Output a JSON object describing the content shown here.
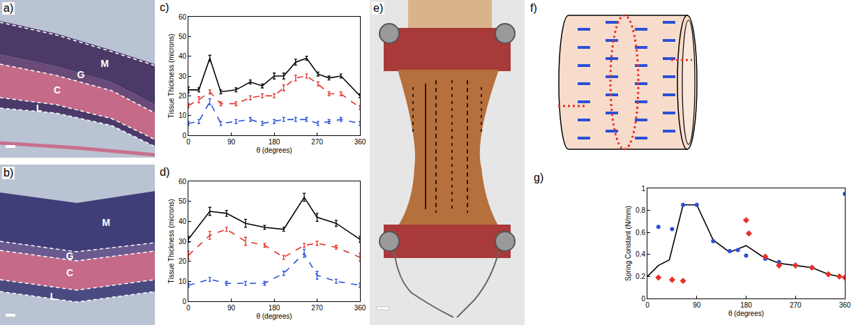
{
  "panels": {
    "a": {
      "label": "a)",
      "layers": [
        "M",
        "G",
        "C",
        "L"
      ]
    },
    "b": {
      "label": "b)",
      "layers": [
        "M",
        "G",
        "C",
        "L"
      ]
    },
    "e": {
      "label": "e)"
    },
    "f": {
      "label": "f)"
    }
  },
  "chart_data": [
    {
      "label": "c)",
      "type": "line",
      "x_label": "θ (degrees)",
      "y_label": "Tissue Thickness (microns)",
      "x": [
        0,
        22,
        45,
        68,
        100,
        130,
        155,
        180,
        200,
        225,
        248,
        272,
        295,
        320,
        360
      ],
      "xlim": [
        0,
        360
      ],
      "xticks": [
        0,
        90,
        180,
        270,
        360
      ],
      "ylim": [
        0,
        60
      ],
      "yticks": [
        0,
        10,
        20,
        30,
        40,
        50,
        60
      ],
      "grid": false,
      "series": [
        {
          "color": "#000000",
          "line_style": "solid",
          "values": [
            23,
            23,
            39,
            22,
            23,
            27,
            25,
            30,
            30,
            37,
            39,
            31,
            29,
            30,
            20
          ],
          "error": [
            1.5,
            1,
            1.5,
            1,
            1,
            1,
            1,
            1.5,
            1.5,
            1.5,
            1,
            1,
            1,
            1,
            1
          ]
        },
        {
          "color": "#e8302a",
          "line_style": "dashed",
          "values": [
            15,
            18,
            22,
            16,
            16,
            19,
            20,
            20,
            24,
            29,
            30,
            26,
            21,
            21,
            14
          ],
          "error": [
            1,
            1.5,
            1,
            1,
            1,
            1,
            1,
            1,
            1.5,
            1.5,
            1,
            1,
            1,
            1,
            1
          ]
        },
        {
          "color": "#2b4fd6",
          "line_style": "dashed",
          "values": [
            6,
            7,
            17,
            6,
            7,
            8,
            6,
            7,
            8,
            8,
            8,
            6,
            7,
            8,
            6
          ],
          "error": [
            1,
            1,
            1.5,
            1,
            1,
            1,
            1,
            1,
            1,
            1,
            1,
            1,
            1,
            1,
            1
          ]
        }
      ]
    },
    {
      "label": "d)",
      "type": "line",
      "x_label": "θ (degrees)",
      "y_label": "Tissue Thickness (microns)",
      "x": [
        0,
        45,
        80,
        120,
        160,
        200,
        243,
        270,
        310,
        360
      ],
      "xlim": [
        0,
        360
      ],
      "xticks": [
        0,
        90,
        180,
        270,
        360
      ],
      "ylim": [
        0,
        60
      ],
      "yticks": [
        0,
        10,
        20,
        30,
        40,
        50,
        60
      ],
      "grid": false,
      "series": [
        {
          "color": "#000000",
          "line_style": "solid",
          "values": [
            31,
            45,
            44,
            39,
            37,
            36,
            52,
            42,
            39,
            31
          ],
          "error": [
            1.5,
            2,
            1.5,
            2,
            1,
            1,
            2,
            2,
            1.5,
            1.5
          ]
        },
        {
          "color": "#e8302a",
          "line_style": "dashed",
          "values": [
            23,
            33,
            36,
            30,
            28,
            22,
            28,
            29,
            27,
            22
          ],
          "error": [
            2,
            2,
            1,
            2,
            1,
            1,
            1,
            1,
            1,
            2
          ]
        },
        {
          "color": "#2b4fd6",
          "line_style": "dashed",
          "values": [
            8,
            11,
            9,
            9,
            9,
            14,
            24,
            13,
            10,
            8
          ],
          "error": [
            1,
            1,
            1,
            1,
            1,
            1,
            2,
            2,
            1,
            1
          ]
        }
      ]
    },
    {
      "label": "g)",
      "type": "scatter",
      "x_label": "θ (degrees)",
      "y_label": "Spring Constant (N/mm)",
      "xlim": [
        0,
        360
      ],
      "xticks": [
        0,
        90,
        180,
        270,
        360
      ],
      "ylim": [
        0,
        1
      ],
      "yticks": [
        0,
        0.2,
        0.4,
        0.6,
        0.8,
        1
      ],
      "grid": false,
      "series": [
        {
          "type": "line",
          "color": "#000000",
          "line_style": "solid",
          "x": [
            0,
            20,
            40,
            65,
            90,
            120,
            150,
            180,
            210,
            240,
            270,
            300,
            330,
            360
          ],
          "values": [
            0.2,
            0.3,
            0.35,
            0.85,
            0.85,
            0.53,
            0.42,
            0.48,
            0.38,
            0.32,
            0.3,
            0.28,
            0.22,
            0.19
          ]
        },
        {
          "type": "scatter",
          "color": "#2b4fd6",
          "marker": "circle",
          "x": [
            20,
            45,
            65,
            90,
            120,
            150,
            165,
            180,
            215,
            240,
            360
          ],
          "values": [
            0.65,
            0.63,
            0.85,
            0.85,
            0.52,
            0.43,
            0.44,
            0.39,
            0.36,
            0.33,
            0.95
          ]
        },
        {
          "type": "scatter",
          "color": "#e8302a",
          "marker": "diamond",
          "x": [
            20,
            45,
            65,
            180,
            185,
            215,
            240,
            270,
            300,
            330,
            350,
            360
          ],
          "values": [
            0.19,
            0.17,
            0.16,
            0.71,
            0.59,
            0.38,
            0.3,
            0.3,
            0.28,
            0.22,
            0.2,
            0.19
          ]
        }
      ]
    }
  ]
}
